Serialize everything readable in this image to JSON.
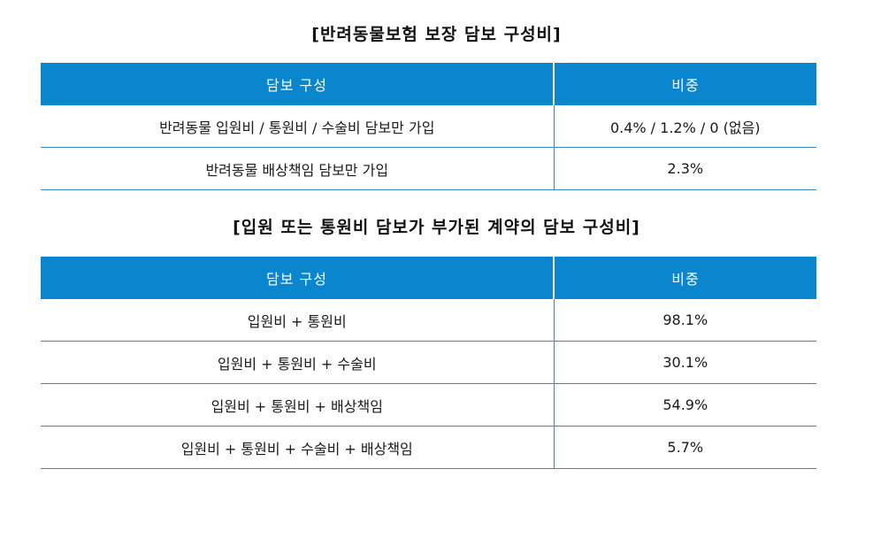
{
  "table1": {
    "title": "[반려동물보험 보장 담보 구성비]",
    "headers": [
      "담보 구성",
      "비중"
    ],
    "rows": [
      {
        "coverage": "반려동물 입원비 / 통원비 / 수술비 담보만 가입",
        "share": "0.4% / 1.2% / 0 (없음)"
      },
      {
        "coverage": "반려동물 배상책임 담보만 가입",
        "share": "2.3%"
      }
    ]
  },
  "table2": {
    "title": "[입원 또는 통원비 담보가 부가된 계약의 담보 구성비]",
    "headers": [
      "담보 구성",
      "비중"
    ],
    "rows": [
      {
        "coverage": "입원비 + 통원비",
        "share": "98.1%"
      },
      {
        "coverage": "입원비 + 통원비 + 수술비",
        "share": "30.1%"
      },
      {
        "coverage": "입원비 + 통원비 + 배상책임",
        "share": "54.9%"
      },
      {
        "coverage": "입원비 + 통원비 + 수술비 + 배상책임",
        "share": "5.7%"
      }
    ]
  },
  "colors": {
    "header_background": "#0a86cf",
    "header_text": "#ffffff",
    "rule_line": "#3d86c6"
  }
}
